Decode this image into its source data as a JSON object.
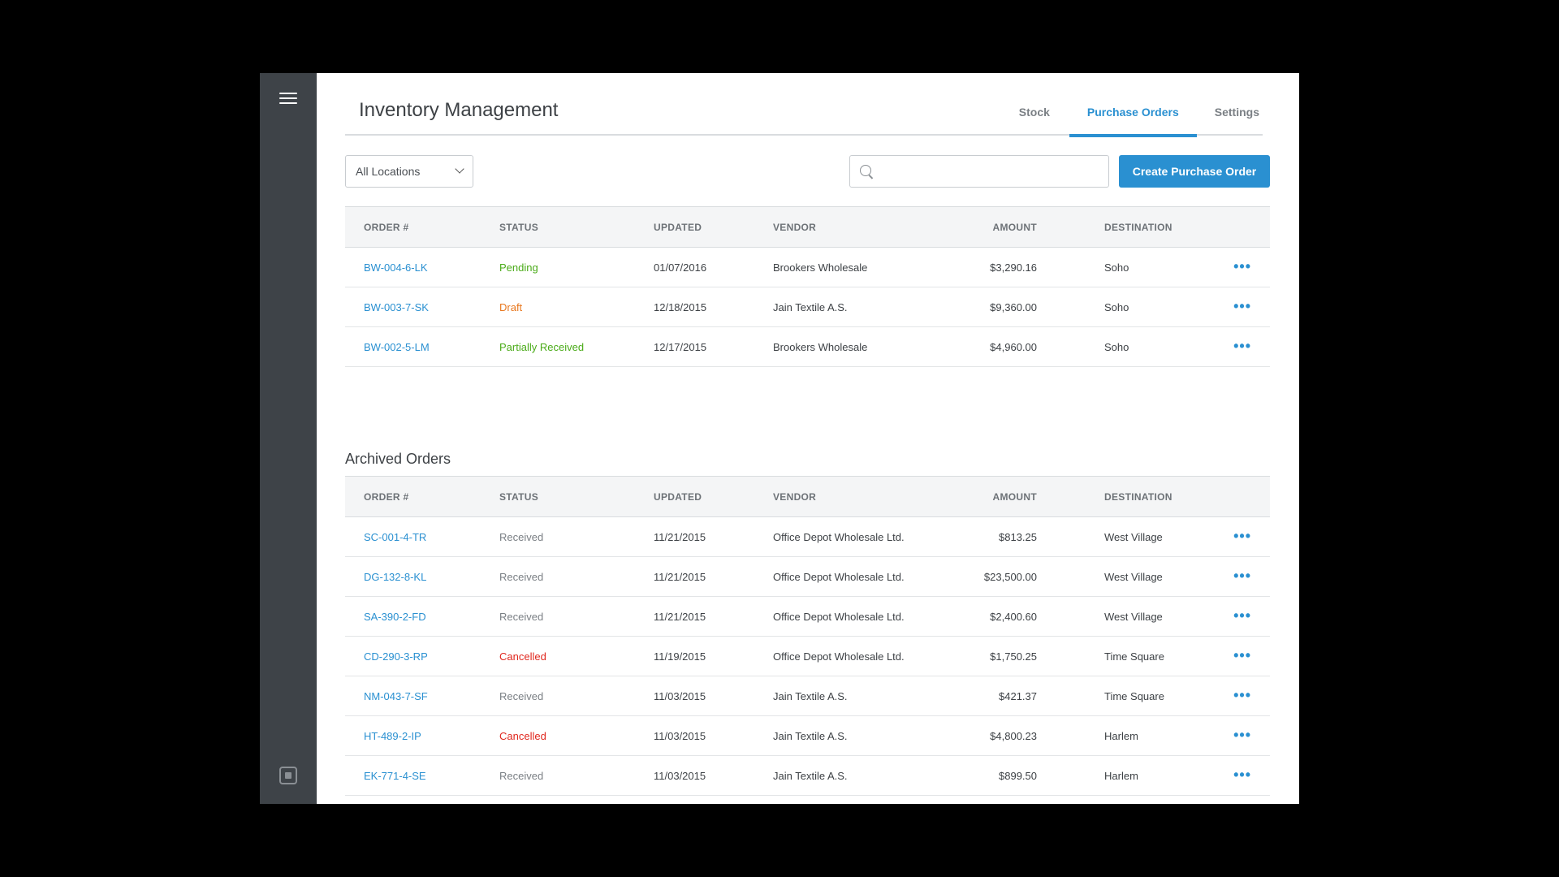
{
  "app": {
    "title": "Inventory Management"
  },
  "tabs": [
    {
      "label": "Stock",
      "active": false
    },
    {
      "label": "Purchase Orders",
      "active": true
    },
    {
      "label": "Settings",
      "active": false
    }
  ],
  "toolbar": {
    "location_value": "All Locations",
    "search_placeholder": "",
    "create_label": "Create Purchase Order"
  },
  "columns": [
    "ORDER #",
    "STATUS",
    "UPDATED",
    "VENDOR",
    "AMOUNT",
    "DESTINATION"
  ],
  "active_orders": [
    {
      "order": "BW-004-6-LK",
      "status": "Pending",
      "updated": "01/07/2016",
      "vendor": "Brookers Wholesale",
      "amount": "$3,290.16",
      "destination": "Soho"
    },
    {
      "order": "BW-003-7-SK",
      "status": "Draft",
      "updated": "12/18/2015",
      "vendor": "Jain Textile A.S.",
      "amount": "$9,360.00",
      "destination": "Soho"
    },
    {
      "order": "BW-002-5-LM",
      "status": "Partially Received",
      "updated": "12/17/2015",
      "vendor": "Brookers Wholesale",
      "amount": "$4,960.00",
      "destination": "Soho"
    }
  ],
  "archived": {
    "title": "Archived Orders",
    "orders": [
      {
        "order": "SC-001-4-TR",
        "status": "Received",
        "updated": "11/21/2015",
        "vendor": "Office Depot Wholesale Ltd.",
        "amount": "$813.25",
        "destination": "West Village"
      },
      {
        "order": "DG-132-8-KL",
        "status": "Received",
        "updated": "11/21/2015",
        "vendor": "Office Depot Wholesale Ltd.",
        "amount": "$23,500.00",
        "destination": "West Village"
      },
      {
        "order": "SA-390-2-FD",
        "status": "Received",
        "updated": "11/21/2015",
        "vendor": "Office Depot Wholesale Ltd.",
        "amount": "$2,400.60",
        "destination": "West Village"
      },
      {
        "order": "CD-290-3-RP",
        "status": "Cancelled",
        "updated": "11/19/2015",
        "vendor": "Office Depot Wholesale Ltd.",
        "amount": "$1,750.25",
        "destination": "Time Square"
      },
      {
        "order": "NM-043-7-SF",
        "status": "Received",
        "updated": "11/03/2015",
        "vendor": "Jain Textile A.S.",
        "amount": "$421.37",
        "destination": "Time Square"
      },
      {
        "order": "HT-489-2-IP",
        "status": "Cancelled",
        "updated": "11/03/2015",
        "vendor": "Jain Textile A.S.",
        "amount": "$4,800.23",
        "destination": "Harlem"
      },
      {
        "order": "EK-771-4-SE",
        "status": "Received",
        "updated": "11/03/2015",
        "vendor": "Jain Textile A.S.",
        "amount": "$899.50",
        "destination": "Harlem"
      }
    ]
  },
  "more_icon": "more-dots-icon",
  "colors": {
    "accent": "#2a90d1",
    "sidebar": "#3e4348",
    "pending": "#4aab18",
    "draft": "#e8771e",
    "cancelled": "#e0281f",
    "received": "#7a7f84"
  }
}
